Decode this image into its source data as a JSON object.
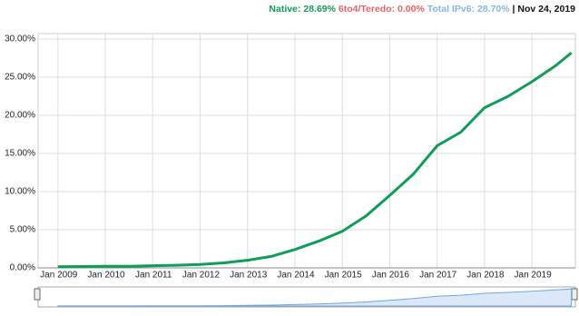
{
  "chart_data": {
    "type": "line",
    "header": [
      {
        "text": "Native: 28.69%",
        "color": "#0f9d58"
      },
      {
        "text": "6to4/Teredo: 0.00%",
        "color": "#e06666"
      },
      {
        "text": "Total IPv6: 28.70%",
        "color": "#8ab4e0"
      },
      {
        "text": "| Nov 24, 2019",
        "color": "#111111"
      }
    ],
    "x": [
      "2009-01",
      "2009-07",
      "2010-01",
      "2010-07",
      "2011-01",
      "2011-07",
      "2012-01",
      "2012-07",
      "2013-01",
      "2013-07",
      "2014-01",
      "2014-07",
      "2015-01",
      "2015-07",
      "2016-01",
      "2016-07",
      "2017-01",
      "2017-07",
      "2018-01",
      "2018-07",
      "2019-01",
      "2019-07",
      "2019-11"
    ],
    "series": [
      {
        "name": "Native",
        "color": "#0f9d58",
        "values": [
          0.15,
          0.18,
          0.2,
          0.22,
          0.28,
          0.35,
          0.45,
          0.65,
          1.0,
          1.5,
          2.4,
          3.5,
          4.8,
          6.8,
          9.5,
          12.3,
          16.0,
          17.8,
          21.0,
          22.5,
          24.4,
          26.5,
          28.2
        ]
      }
    ],
    "xlim": [
      "2008-08",
      "2019-12"
    ],
    "xticks": [
      {
        "value": "2009-01",
        "label": "Jan 2009"
      },
      {
        "value": "2010-01",
        "label": "Jan 2010"
      },
      {
        "value": "2011-01",
        "label": "Jan 2011"
      },
      {
        "value": "2012-01",
        "label": "Jan 2012"
      },
      {
        "value": "2013-01",
        "label": "Jan 2013"
      },
      {
        "value": "2014-01",
        "label": "Jan 2014"
      },
      {
        "value": "2015-01",
        "label": "Jan 2015"
      },
      {
        "value": "2016-01",
        "label": "Jan 2016"
      },
      {
        "value": "2017-01",
        "label": "Jan 2017"
      },
      {
        "value": "2018-01",
        "label": "Jan 2018"
      },
      {
        "value": "2019-01",
        "label": "Jan 2019"
      }
    ],
    "ylim": [
      0,
      30
    ],
    "yticks": [
      {
        "value": 0,
        "label": "0.00%"
      },
      {
        "value": 5,
        "label": "5.00%"
      },
      {
        "value": 10,
        "label": "10.00%"
      },
      {
        "value": 15,
        "label": "15.00%"
      },
      {
        "value": 20,
        "label": "20.00%"
      },
      {
        "value": 25,
        "label": "25.00%"
      },
      {
        "value": 30,
        "label": "30.00%"
      }
    ],
    "grid": true
  }
}
